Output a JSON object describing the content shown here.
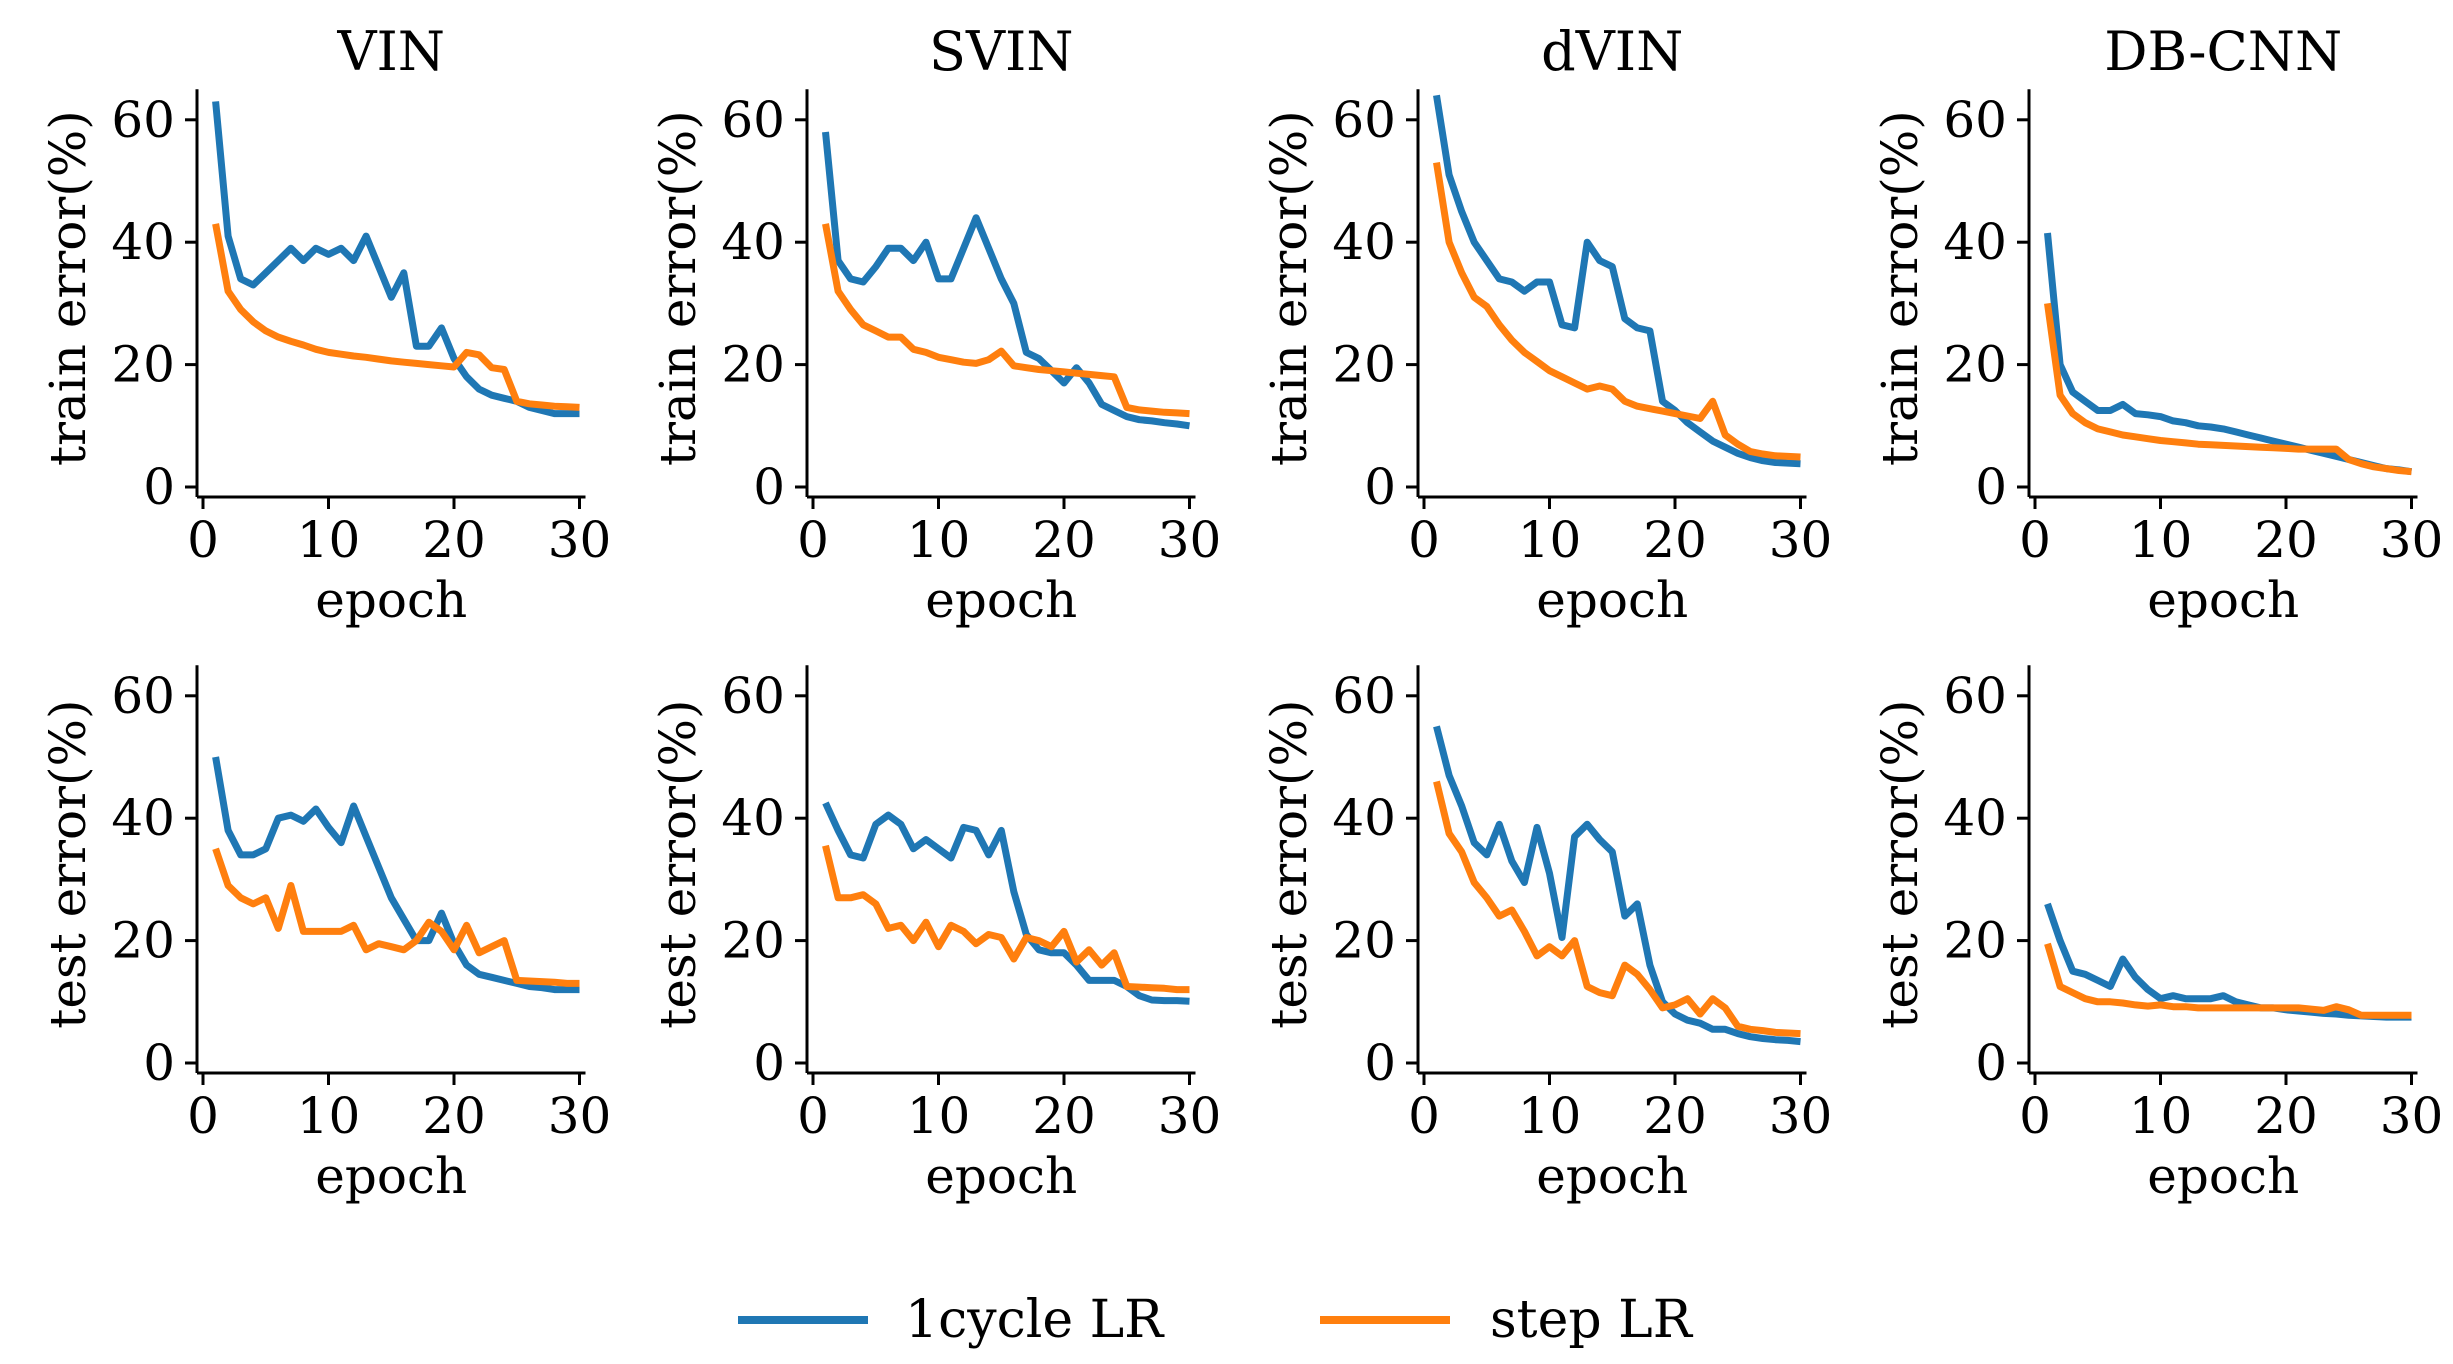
{
  "chart_data": {
    "type": "line",
    "layout": "2x4 grid of line charts",
    "columns": [
      "VIN",
      "SVIN",
      "dVIN",
      "DB-CNN"
    ],
    "xlabel": "epoch",
    "xlim": [
      0,
      30
    ],
    "ylim": [
      0,
      65
    ],
    "xticks": [
      "0",
      "10",
      "20",
      "30"
    ],
    "yticks": [
      "0",
      "20",
      "40",
      "60"
    ],
    "series_styles": [
      {
        "name": "1cycle LR",
        "color": "#1f77b4"
      },
      {
        "name": "step LR",
        "color": "#ff7f0e"
      }
    ],
    "legend": {
      "position": "bottom-center",
      "entries": [
        "1cycle LR",
        "step LR"
      ]
    },
    "panels": [
      {
        "title": "VIN",
        "ylabel": "train error(%)",
        "series": [
          {
            "name": "1cycle LR",
            "values": [
              63,
              41,
              34,
              33,
              35,
              37,
              39,
              37,
              39,
              38,
              39,
              37,
              41,
              36,
              31,
              35,
              23,
              23,
              26,
              21,
              18,
              16,
              15,
              14.5,
              14,
              13,
              12.5,
              12,
              12,
              12
            ]
          },
          {
            "name": "step LR",
            "values": [
              43,
              32,
              29,
              27,
              25.5,
              24.5,
              23.8,
              23.2,
              22.5,
              22,
              21.7,
              21.4,
              21.2,
              20.9,
              20.6,
              20.4,
              20.2,
              20,
              19.8,
              19.6,
              22,
              21.6,
              19.5,
              19.2,
              14,
              13.6,
              13.4,
              13.2,
              13.1,
              13
            ]
          }
        ]
      },
      {
        "title": "SVIN",
        "ylabel": "train error(%)",
        "series": [
          {
            "name": "1cycle LR",
            "values": [
              58,
              37,
              34,
              33.5,
              36,
              39,
              39,
              37,
              40,
              34,
              34,
              39,
              44,
              39,
              34,
              30,
              22,
              21,
              19,
              17,
              19.5,
              17,
              13.5,
              12.5,
              11.5,
              11,
              10.8,
              10.5,
              10.3,
              10
            ]
          },
          {
            "name": "step LR",
            "values": [
              43,
              32,
              29,
              26.5,
              25.5,
              24.5,
              24.5,
              22.5,
              22,
              21.2,
              20.8,
              20.4,
              20.2,
              20.8,
              22.2,
              19.8,
              19.5,
              19.2,
              19,
              18.8,
              18.6,
              18.4,
              18.2,
              18,
              13,
              12.6,
              12.4,
              12.2,
              12.1,
              12
            ]
          }
        ]
      },
      {
        "title": "dVIN",
        "ylabel": "train error(%)",
        "series": [
          {
            "name": "1cycle LR",
            "values": [
              64,
              51,
              45,
              40,
              37,
              34,
              33.5,
              32,
              33.5,
              33.5,
              26.5,
              26,
              40,
              37,
              36,
              27.5,
              26,
              25.5,
              14,
              12.5,
              10.5,
              9,
              7.5,
              6.5,
              5.5,
              4.8,
              4.3,
              4,
              3.9,
              3.8
            ]
          },
          {
            "name": "step LR",
            "values": [
              53,
              40,
              35,
              31,
              29.5,
              26.5,
              24,
              22,
              20.5,
              19,
              18,
              17,
              16,
              16.5,
              16,
              14,
              13.2,
              12.8,
              12.4,
              12,
              11.6,
              11.2,
              14,
              8.5,
              7,
              5.8,
              5.4,
              5.1,
              5,
              4.9
            ]
          }
        ]
      },
      {
        "title": "DB-CNN",
        "ylabel": "train error(%)",
        "series": [
          {
            "name": "1cycle LR",
            "values": [
              41.5,
              20,
              15.5,
              14,
              12.5,
              12.5,
              13.5,
              12,
              11.8,
              11.5,
              10.8,
              10.5,
              10,
              9.8,
              9.5,
              9,
              8.5,
              8,
              7.5,
              7,
              6.5,
              6,
              5.5,
              5,
              4.5,
              4,
              3.5,
              3,
              2.8,
              2.5
            ]
          },
          {
            "name": "step LR",
            "values": [
              30,
              15,
              12,
              10.5,
              9.5,
              9,
              8.5,
              8.2,
              7.9,
              7.6,
              7.4,
              7.2,
              7,
              6.9,
              6.8,
              6.7,
              6.6,
              6.5,
              6.4,
              6.3,
              6.2,
              6.2,
              6.2,
              6.2,
              4.5,
              3.8,
              3.3,
              3,
              2.7,
              2.5
            ]
          }
        ]
      },
      {
        "title": "",
        "ylabel": "test error(%)",
        "series": [
          {
            "name": "1cycle LR",
            "values": [
              50,
              38,
              34,
              34,
              35,
              40,
              40.5,
              39.5,
              41.5,
              38.5,
              36,
              42,
              37,
              32,
              27,
              23.5,
              20,
              20,
              24.5,
              19.5,
              16,
              14.5,
              14,
              13.5,
              13,
              12.5,
              12.3,
              12,
              12,
              12
            ]
          },
          {
            "name": "step LR",
            "values": [
              35,
              29,
              27,
              26,
              27,
              22,
              29,
              21.5,
              21.5,
              21.5,
              21.5,
              22.5,
              18.5,
              19.5,
              19,
              18.5,
              20,
              23,
              21.5,
              18.5,
              22.5,
              18,
              19,
              20,
              13.5,
              13.4,
              13.3,
              13.2,
              13,
              13
            ]
          }
        ]
      },
      {
        "title": "",
        "ylabel": "test error(%)",
        "series": [
          {
            "name": "1cycle LR",
            "values": [
              42.5,
              38,
              34,
              33.5,
              39,
              40.5,
              39,
              35,
              36.5,
              35,
              33.5,
              38.5,
              38,
              34,
              38,
              28,
              21,
              18.5,
              18,
              18,
              16,
              13.5,
              13.5,
              13.5,
              12.5,
              11,
              10.3,
              10.2,
              10.2,
              10.1
            ]
          },
          {
            "name": "step LR",
            "values": [
              35.5,
              27,
              27,
              27.5,
              26,
              22,
              22.5,
              20,
              23,
              19,
              22.5,
              21.5,
              19.5,
              21,
              20.5,
              17,
              20.5,
              20,
              19,
              21.5,
              16.5,
              18.5,
              16,
              18,
              12.5,
              12.4,
              12.3,
              12.2,
              12,
              12
            ]
          }
        ]
      },
      {
        "title": "",
        "ylabel": "test error(%)",
        "series": [
          {
            "name": "1cycle LR",
            "values": [
              55,
              47,
              42,
              36,
              34,
              39,
              33,
              29.5,
              38.5,
              31,
              20.5,
              37,
              39,
              36.5,
              34.5,
              24,
              26,
              16,
              10,
              8,
              7,
              6.5,
              5.5,
              5.5,
              4.8,
              4.3,
              4,
              3.8,
              3.7,
              3.5
            ]
          },
          {
            "name": "step LR",
            "values": [
              46,
              37.5,
              34.5,
              29.5,
              27,
              24,
              25,
              21.5,
              17.5,
              19,
              17.5,
              20,
              12.5,
              11.5,
              11,
              16,
              14.5,
              12,
              9,
              9.5,
              10.5,
              8,
              10.5,
              9,
              6,
              5.5,
              5.3,
              5,
              4.9,
              4.8
            ]
          }
        ]
      },
      {
        "title": "",
        "ylabel": "test error(%)",
        "series": [
          {
            "name": "1cycle LR",
            "values": [
              26,
              20,
              15,
              14.5,
              13.5,
              12.5,
              17,
              14,
              12,
              10.5,
              11,
              10.5,
              10.5,
              10.5,
              11,
              10,
              9.5,
              9,
              9,
              8.7,
              8.5,
              8.3,
              8.1,
              8,
              7.8,
              7.7,
              7.6,
              7.5,
              7.5,
              7.5
            ]
          },
          {
            "name": "step LR",
            "values": [
              19.5,
              12.5,
              11.5,
              10.5,
              10,
              10,
              9.8,
              9.5,
              9.3,
              9.5,
              9.2,
              9.2,
              9,
              9,
              9,
              9,
              9,
              9,
              9,
              9,
              9,
              8.8,
              8.6,
              9.2,
              8.7,
              7.8,
              7.8,
              7.8,
              7.8,
              7.8
            ]
          }
        ]
      }
    ]
  }
}
